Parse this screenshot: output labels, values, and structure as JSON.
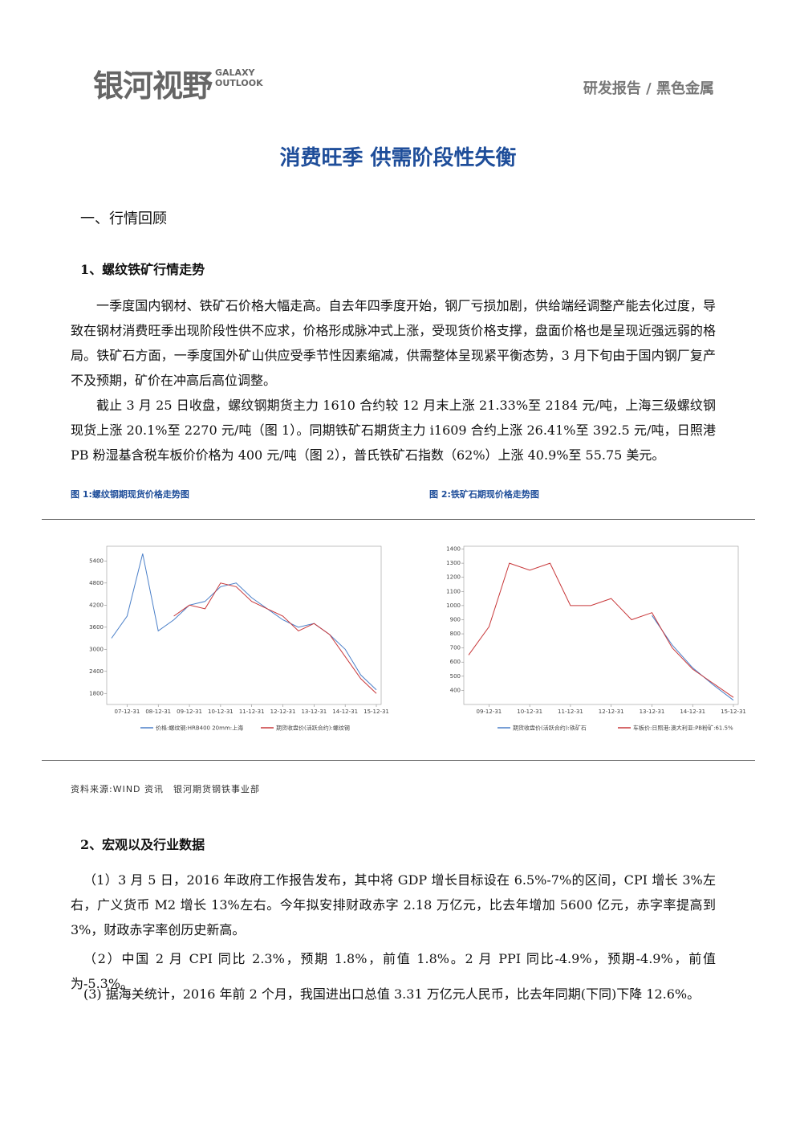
{
  "header": {
    "logo_cn": "银河视野",
    "logo_en": [
      "GALAXY",
      "OUTLOOK"
    ],
    "category": "研发报告 / 黑色金属"
  },
  "title": "消费旺季 供需阶段性失衡",
  "section_heading": "一、行情回顾",
  "sub1": {
    "heading": "1、螺纹铁矿行情走势",
    "paragraphs": [
      "一季度国内钢材、铁矿石价格大幅走高。自去年四季度开始，钢厂亏损加剧，供给端经调整产能去化过度，导致在钢材消费旺季出现阶段性供不应求，价格形成脉冲式上涨，受现货价格支撑，盘面价格也是呈现近强远弱的格局。铁矿石方面，一季度国外矿山供应受季节性因素缩减，供需整体呈现紧平衡态势，3 月下旬由于国内钢厂复产不及预期，矿价在冲高后高位调整。",
      "截止 3 月 25 日收盘，螺纹钢期货主力 1610 合约较 12 月末上涨 21.33%至 2184 元/吨，上海三级螺纹钢现货上涨 20.1%至 2270 元/吨（图 1）。同期铁矿石期货主力 i1609 合约上涨 26.41%至 392.5 元/吨，日照港 PB 粉湿基含税车板价价格为 400 元/吨（图 2），普氏铁矿石指数（62%）上涨 40.9%至 55.75 美元。"
    ]
  },
  "figures": [
    {
      "caption": "图 1:螺纹钢期现货价格走势图"
    },
    {
      "caption": "图 2:铁矿石期现价格走势图"
    }
  ],
  "source": "资料来源:WIND 资讯　银河期货钢铁事业部",
  "sub2": {
    "heading": "2、宏观以及行业数据",
    "paragraphs": [
      "（1）3 月 5 日，2016 年政府工作报告发布，其中将 GDP 增长目标设在 6.5%-7%的区间，CPI 增长 3%左右，广义货币 M2 增长 13%左右。今年拟安排财政赤字 2.18 万亿元，比去年增加 5600 亿元，赤字率提高到 3%，财政赤字率创历史新高。",
      "（2）中国 2 月 CPI 同比 2.3%，预期 1.8%，前值 1.8%。2 月 PPI 同比-4.9%，预期-4.9%，前值为-5.3%。",
      "(3) 据海关统计，2016 年前 2 个月，我国进出口总值 3.31 万亿元人民币，比去年同期(下同)下降 12.6%。"
    ]
  },
  "chart_data": [
    {
      "type": "line",
      "x": [
        "07-06-30",
        "07-12-31",
        "08-06-30",
        "08-12-31",
        "09-06-30",
        "09-12-31",
        "10-06-30",
        "10-12-31",
        "11-06-30",
        "11-12-31",
        "12-06-30",
        "12-12-31",
        "13-06-30",
        "13-12-31",
        "14-06-30",
        "14-12-31",
        "15-06-30",
        "15-12-31"
      ],
      "xticks": [
        "07-12-31",
        "08-12-31",
        "09-12-31",
        "10-12-31",
        "11-12-31",
        "12-12-31",
        "13-12-31",
        "14-12-31",
        "15-12-31"
      ],
      "ylim": [
        1500,
        5800
      ],
      "yticks": [
        1800,
        2400,
        3000,
        3600,
        4200,
        4800,
        5400
      ],
      "series": [
        {
          "name": "价格:螺纹钢:HRB400 20mm:上海",
          "color": "#4a7fc8",
          "values": [
            3300,
            3900,
            5600,
            3500,
            3800,
            4200,
            4300,
            4700,
            4800,
            4400,
            4100,
            3800,
            3600,
            3700,
            3400,
            3000,
            2300,
            1900
          ]
        },
        {
          "name": "期货收盘价(活跃合约):螺纹钢",
          "color": "#c8383a",
          "values": [
            null,
            null,
            null,
            null,
            3900,
            4200,
            4100,
            4800,
            4700,
            4300,
            4100,
            3900,
            3500,
            3700,
            3400,
            2800,
            2200,
            1800
          ]
        }
      ]
    },
    {
      "type": "line",
      "x": [
        "09-06-30",
        "09-12-31",
        "10-06-30",
        "10-12-31",
        "11-06-30",
        "11-12-31",
        "12-06-30",
        "12-12-31",
        "13-06-30",
        "13-12-31",
        "14-06-30",
        "14-12-31",
        "15-06-30",
        "15-12-31"
      ],
      "xticks": [
        "09-12-31",
        "10-12-31",
        "11-12-31",
        "12-12-31",
        "13-12-31",
        "14-12-31",
        "15-12-31"
      ],
      "ylim": [
        300,
        1420
      ],
      "yticks": [
        400,
        500,
        600,
        700,
        800,
        900,
        1000,
        1100,
        1200,
        1300,
        1400
      ],
      "series": [
        {
          "name": "期货收盘价(活跃合约):铁矿石",
          "color": "#4a7fc8",
          "values": [
            null,
            null,
            null,
            null,
            null,
            null,
            null,
            null,
            null,
            930,
            720,
            560,
            440,
            330
          ]
        },
        {
          "name": "车板价:日照港:澳大利亚:PB粉矿:61.5%",
          "color": "#c8383a",
          "values": [
            650,
            850,
            1300,
            1250,
            1300,
            1000,
            1000,
            1050,
            900,
            950,
            700,
            550,
            450,
            350
          ]
        }
      ]
    }
  ]
}
